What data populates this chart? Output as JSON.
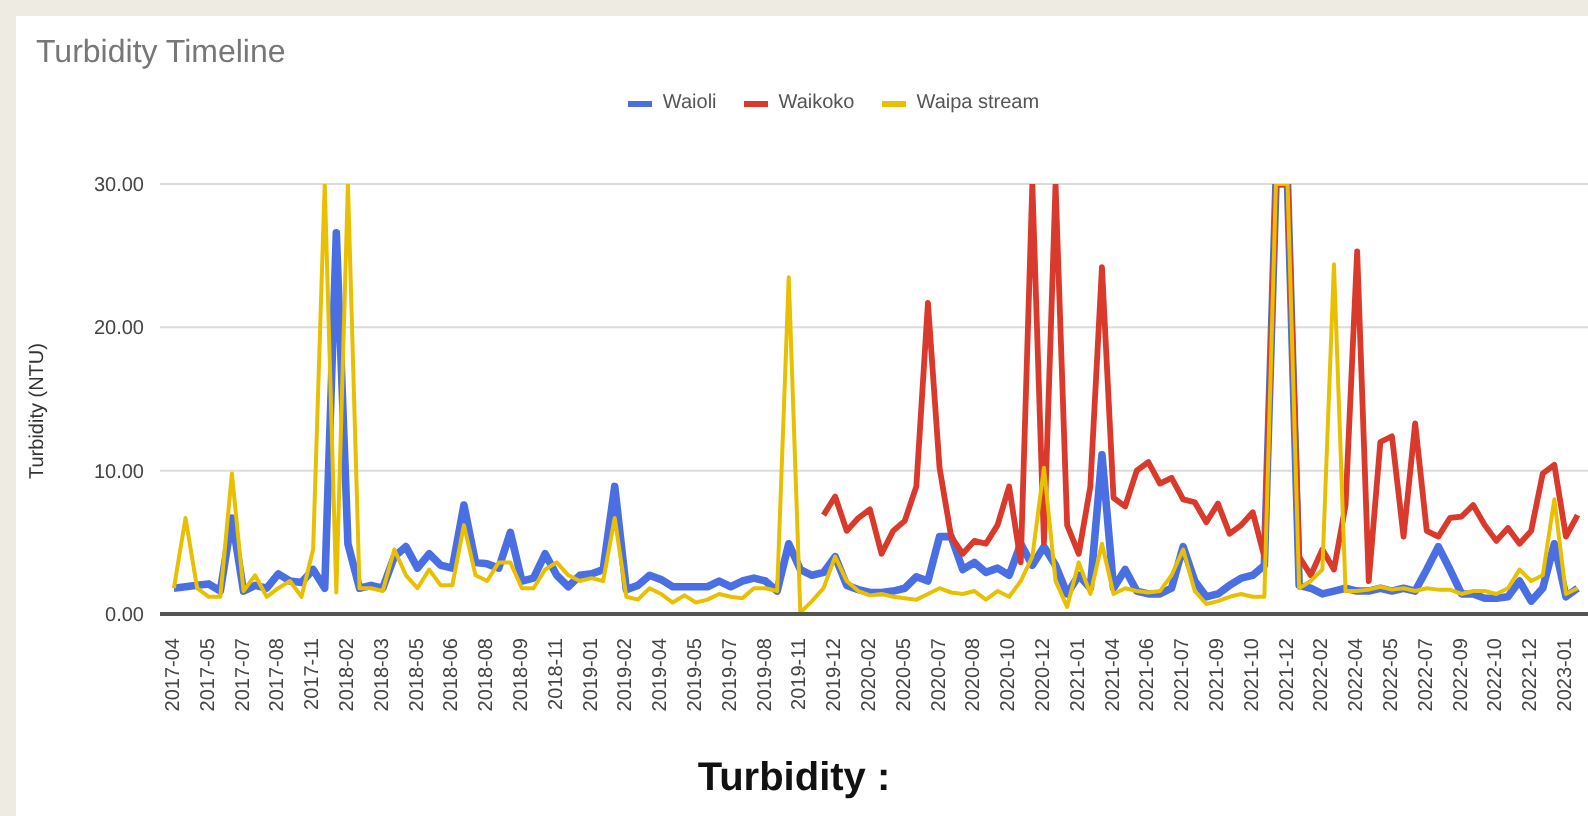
{
  "chart_data": {
    "type": "line",
    "title": "Turbidity Timeline",
    "ylabel": "Turbidity (NTU)",
    "annotations": [
      "Turbidity :"
    ],
    "categories": [
      "2017-04",
      null,
      null,
      "2017-05",
      null,
      null,
      "2017-07",
      null,
      null,
      "2017-08",
      null,
      null,
      "2017-11",
      null,
      null,
      "2018-02",
      null,
      null,
      "2018-03",
      null,
      null,
      "2018-05",
      null,
      null,
      "2018-06",
      null,
      null,
      "2018-08",
      null,
      null,
      "2018-09",
      null,
      null,
      "2018-11",
      null,
      null,
      "2019-01",
      null,
      null,
      "2019-02",
      null,
      null,
      "2019-04",
      null,
      null,
      "2019-05",
      null,
      null,
      "2019-07",
      null,
      null,
      "2019-08",
      null,
      null,
      "2019-11",
      null,
      null,
      "2019-12",
      null,
      null,
      "2020-02",
      null,
      null,
      "2020-05",
      null,
      null,
      "2020-07",
      null,
      null,
      "2020-08",
      null,
      null,
      "2020-10",
      null,
      null,
      "2020-12",
      null,
      null,
      "2021-01",
      null,
      null,
      "2021-04",
      null,
      null,
      "2021-06",
      null,
      null,
      "2021-07",
      null,
      null,
      "2021-09",
      null,
      null,
      "2021-10",
      null,
      null,
      "2021-12",
      null,
      null,
      "2022-02",
      null,
      null,
      "2022-04",
      null,
      null,
      "2022-05",
      null,
      null,
      "2022-07",
      null,
      null,
      "2022-09",
      null,
      null,
      "2022-10",
      null,
      null,
      "2022-12",
      null,
      null,
      "2023-01",
      null
    ],
    "series": [
      {
        "name": "Waioli",
        "color": "#4a6fe3",
        "values": [
          1.8,
          1.9,
          2.0,
          2.1,
          1.6,
          6.7,
          1.6,
          2.0,
          1.8,
          2.8,
          2.3,
          2.2,
          3.1,
          1.8,
          26.6,
          4.9,
          1.8,
          2.0,
          1.8,
          4.0,
          4.7,
          3.2,
          4.2,
          3.4,
          3.2,
          7.6,
          3.6,
          3.5,
          3.2,
          5.7,
          2.3,
          2.5,
          4.2,
          2.7,
          1.9,
          2.7,
          2.8,
          3.1,
          8.9,
          1.7,
          2.0,
          2.7,
          2.4,
          1.9,
          1.9,
          1.9,
          1.9,
          2.3,
          1.9,
          2.3,
          2.5,
          2.3,
          1.6,
          4.9,
          3.1,
          2.7,
          2.9,
          4.0,
          2.0,
          1.7,
          1.5,
          1.5,
          1.6,
          1.8,
          2.6,
          2.3,
          5.4,
          5.4,
          3.1,
          3.6,
          2.9,
          3.2,
          2.7,
          4.9,
          3.4,
          4.7,
          3.4,
          1.4,
          2.7,
          1.8,
          11.1,
          1.8,
          3.1,
          1.6,
          1.4,
          1.4,
          1.8,
          4.7,
          2.3,
          1.2,
          1.4,
          2.0,
          2.5,
          2.7,
          3.4,
          30,
          30,
          2.0,
          1.8,
          1.4,
          1.6,
          1.8,
          1.6,
          1.6,
          1.8,
          1.6,
          1.8,
          1.6,
          3.1,
          4.7,
          3.1,
          1.4,
          1.4,
          1.1,
          1.1,
          1.2,
          2.3,
          0.9,
          1.8,
          4.9,
          1.2,
          1.8
        ]
      },
      {
        "name": "Waikoko",
        "color": "#d93a2b",
        "values": [
          null,
          null,
          null,
          null,
          null,
          null,
          null,
          null,
          null,
          null,
          null,
          null,
          null,
          null,
          null,
          null,
          null,
          null,
          null,
          null,
          null,
          null,
          null,
          null,
          null,
          null,
          null,
          null,
          null,
          null,
          null,
          null,
          null,
          null,
          null,
          null,
          null,
          null,
          null,
          null,
          null,
          null,
          null,
          null,
          null,
          null,
          null,
          null,
          null,
          null,
          null,
          null,
          null,
          null,
          null,
          null,
          6.9,
          8.2,
          5.8,
          6.7,
          7.3,
          4.2,
          5.8,
          6.5,
          8.9,
          21.7,
          10.2,
          5.4,
          4.2,
          5.1,
          4.9,
          6.2,
          8.9,
          3.6,
          30,
          5.0,
          30,
          6.2,
          4.2,
          8.9,
          24.2,
          8.1,
          7.5,
          10.0,
          10.6,
          9.1,
          9.5,
          8.0,
          7.8,
          6.4,
          7.7,
          5.6,
          6.2,
          7.1,
          4.0,
          30,
          30,
          4.0,
          2.7,
          4.5,
          3.1,
          7.6,
          25.3,
          2.3,
          12.0,
          12.4,
          5.4,
          13.3,
          5.8,
          5.4,
          6.7,
          6.8,
          7.6,
          6.2,
          5.1,
          6.0,
          4.9,
          5.8,
          9.8,
          10.4,
          5.4,
          6.9
        ]
      },
      {
        "name": "Waipa stream",
        "color": "#e8c000",
        "values": [
          1.8,
          6.7,
          1.8,
          1.2,
          1.2,
          9.8,
          1.6,
          2.7,
          1.2,
          1.8,
          2.3,
          1.2,
          4.5,
          30,
          1.5,
          30,
          1.8,
          1.8,
          1.6,
          4.5,
          2.7,
          1.8,
          3.1,
          2.0,
          2.0,
          6.2,
          2.7,
          2.3,
          3.6,
          3.6,
          1.8,
          1.8,
          3.1,
          3.6,
          2.7,
          2.3,
          2.5,
          2.3,
          6.7,
          1.2,
          1.0,
          1.8,
          1.4,
          0.8,
          1.3,
          0.8,
          1.0,
          1.4,
          1.2,
          1.1,
          1.8,
          1.8,
          1.6,
          23.5,
          0.1,
          0.9,
          1.8,
          4.0,
          2.3,
          1.6,
          1.3,
          1.4,
          1.2,
          1.1,
          1.0,
          1.4,
          1.8,
          1.5,
          1.4,
          1.6,
          1.0,
          1.6,
          1.2,
          2.3,
          4.0,
          10.2,
          2.3,
          0.5,
          3.6,
          1.4,
          4.9,
          1.4,
          1.8,
          1.6,
          1.5,
          1.6,
          2.7,
          4.5,
          1.6,
          0.7,
          0.9,
          1.2,
          1.4,
          1.2,
          1.2,
          30,
          30,
          1.8,
          2.3,
          3.1,
          24.4,
          1.6,
          1.6,
          1.7,
          1.9,
          1.7,
          1.8,
          1.6,
          1.8,
          1.7,
          1.7,
          1.4,
          1.6,
          1.6,
          1.4,
          1.8,
          3.1,
          2.3,
          2.7,
          8.0,
          1.4,
          1.8
        ]
      }
    ],
    "ylim": [
      0,
      30
    ],
    "yticks": [
      {
        "value": 0,
        "label": "0.00"
      },
      {
        "value": 10,
        "label": "10.00"
      },
      {
        "value": 20,
        "label": "20.00"
      },
      {
        "value": 30,
        "label": "30.00"
      }
    ],
    "grid": "y",
    "legend": "top",
    "marker": "none",
    "line_style": "solid"
  }
}
